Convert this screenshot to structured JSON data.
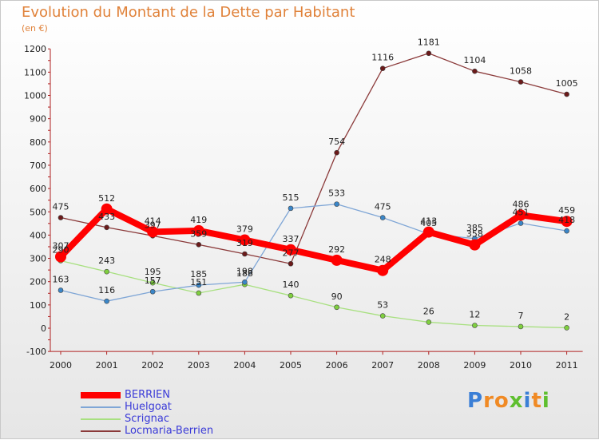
{
  "title": "Evolution du Montant de la Dette par Habitant",
  "subtitle": "(en €)",
  "logo": {
    "text": "Proxiti",
    "letters": [
      "P",
      "r",
      "o",
      "x",
      "i",
      "t",
      "i"
    ],
    "colors": [
      "#3b7fd6",
      "#f08a24",
      "#f08a24",
      "#5fbf2f",
      "#3b7fd6",
      "#f08a24",
      "#5fbf2f"
    ]
  },
  "chart_data": {
    "type": "line",
    "title": "Evolution du Montant de la Dette par Habitant",
    "subtitle": "(en €)",
    "x": [
      "2000",
      "2001",
      "2002",
      "2003",
      "2004",
      "2005",
      "2006",
      "2007",
      "2008",
      "2009",
      "2010",
      "2011"
    ],
    "ylim": [
      -100,
      1200
    ],
    "yticks": [
      -100,
      0,
      100,
      200,
      300,
      400,
      500,
      600,
      700,
      800,
      900,
      1000,
      1100,
      1200
    ],
    "grid": false,
    "legend_position": "bottom-left",
    "series": [
      {
        "name": "BERRIEN",
        "color": "#ff0000",
        "values": [
          307,
          512,
          414,
          419,
          379,
          337,
          292,
          248,
          413,
          358,
          486,
          459
        ],
        "labels": [
          "307",
          "512",
          "414",
          "419",
          "379",
          "337",
          "292",
          "248",
          "413",
          "358",
          "486",
          "459"
        ]
      },
      {
        "name": "Huelgoat",
        "color": "#7fa6d6",
        "marker": "#3a86c8",
        "values": [
          163,
          116,
          157,
          185,
          198,
          515,
          533,
          475,
          405,
          385,
          451,
          418
        ],
        "labels": [
          "163",
          "116",
          "157",
          "185",
          "198",
          "515",
          "533",
          "475",
          "405",
          "385",
          "451",
          "418"
        ]
      },
      {
        "name": "Scrignac",
        "color": "#a8e080",
        "marker": "#7fcf3f",
        "values": [
          290,
          243,
          195,
          151,
          188,
          140,
          90,
          53,
          26,
          12,
          7,
          2
        ],
        "labels": [
          "290",
          "243",
          "195",
          "151",
          "188",
          "140",
          "90",
          "53",
          "26",
          "12",
          "7",
          "2"
        ]
      },
      {
        "name": "Locmaria-Berrien",
        "color": "#8b3a3a",
        "marker": "#6b1a1a",
        "values": [
          475,
          433,
          397,
          359,
          319,
          277,
          754,
          1116,
          1181,
          1104,
          1058,
          1005
        ],
        "labels": [
          "475",
          "433",
          "397",
          "359",
          "319",
          "277",
          "754",
          "1116",
          "1181",
          "1104",
          "1058",
          "1005"
        ]
      }
    ]
  }
}
